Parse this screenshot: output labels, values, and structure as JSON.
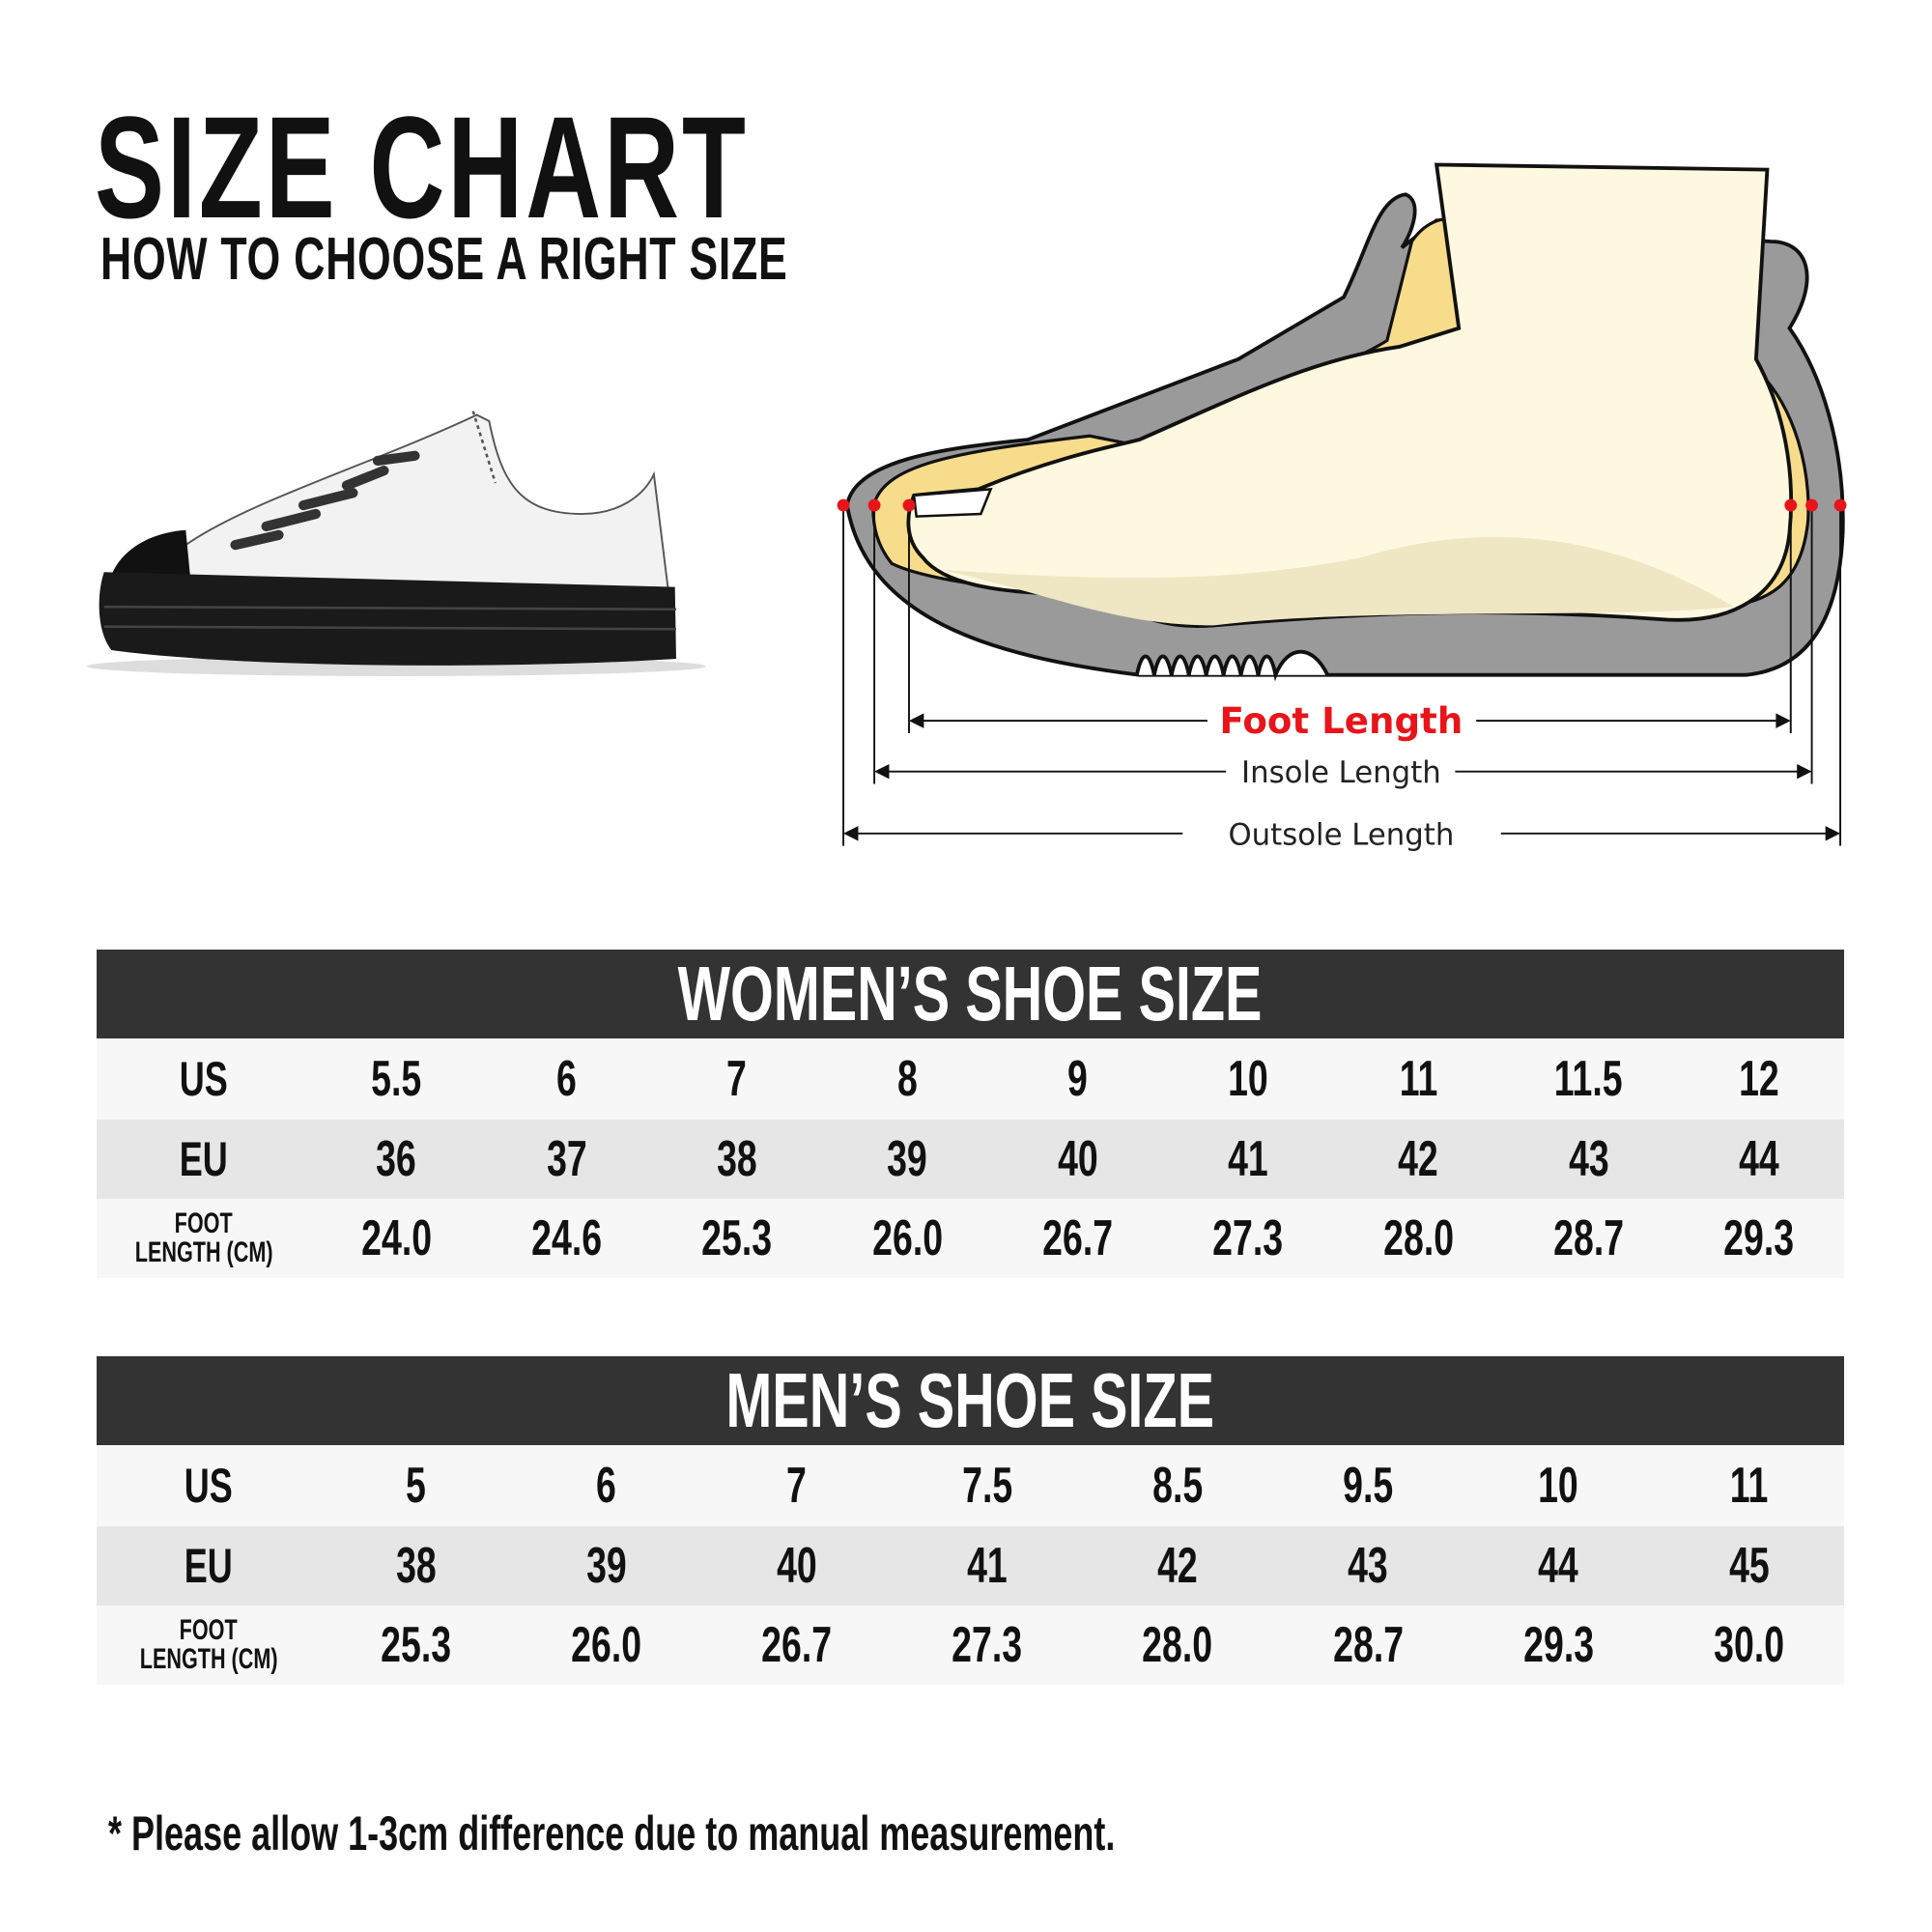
{
  "header": {
    "title": "SIZE CHART",
    "subtitle": "HOW TO CHOOSE A RIGHT SIZE"
  },
  "diagram": {
    "foot_length_label": "Foot Length",
    "insole_length_label": "Insole Length",
    "outsole_length_label": "Outsole Length",
    "colors": {
      "foot_length": "#e8141b",
      "outsole": "#9a9a9a",
      "insole": "#f7dc8c",
      "foot": "#fdf8df",
      "marker": "#e8141b"
    }
  },
  "women": {
    "title": "WOMEN’S SHOE SIZE",
    "row_labels": {
      "us": "US",
      "eu": "EU",
      "foot_line1": "FOOT",
      "foot_line2": "LENGTH (CM)"
    },
    "us": [
      "5.5",
      "6",
      "7",
      "8",
      "9",
      "10",
      "11",
      "11.5",
      "12"
    ],
    "eu": [
      "36",
      "37",
      "38",
      "39",
      "40",
      "41",
      "42",
      "43",
      "44"
    ],
    "foot_length_cm": [
      "24.0",
      "24.6",
      "25.3",
      "26.0",
      "26.7",
      "27.3",
      "28.0",
      "28.7",
      "29.3"
    ]
  },
  "men": {
    "title": "MEN’S SHOE SIZE",
    "row_labels": {
      "us": "US",
      "eu": "EU",
      "foot_line1": "FOOT",
      "foot_line2": "LENGTH (CM)"
    },
    "us": [
      "5",
      "6",
      "7",
      "7.5",
      "8.5",
      "9.5",
      "10",
      "11"
    ],
    "eu": [
      "38",
      "39",
      "40",
      "41",
      "42",
      "43",
      "44",
      "45"
    ],
    "foot_length_cm": [
      "25.3",
      "26.0",
      "26.7",
      "27.3",
      "28.0",
      "28.7",
      "29.3",
      "30.0"
    ]
  },
  "footnote": "* Please allow 1-3cm difference due to manual measurement."
}
